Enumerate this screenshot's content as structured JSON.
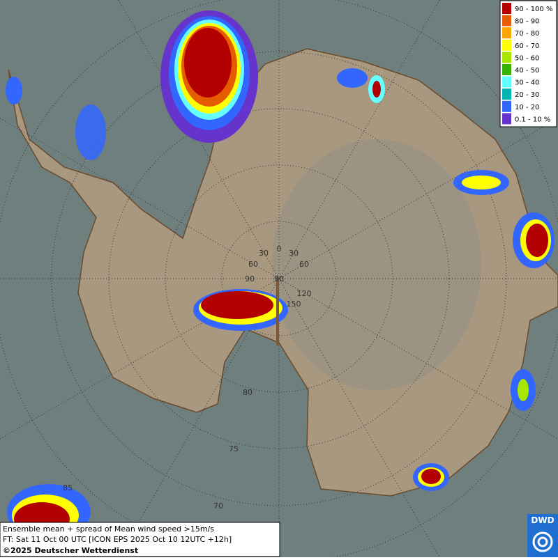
{
  "legend": {
    "items": [
      {
        "label": "90 - 100 %",
        "color": "#b30000"
      },
      {
        "label": "80 - 90",
        "color": "#e65c00"
      },
      {
        "label": "70 - 80",
        "color": "#ffa500"
      },
      {
        "label": "60 - 70",
        "color": "#ffff00"
      },
      {
        "label": "50 - 60",
        "color": "#a8e600"
      },
      {
        "label": "40 - 50",
        "color": "#33b300"
      },
      {
        "label": "30 - 40",
        "color": "#66ffff"
      },
      {
        "label": "20 - 30",
        "color": "#00b3b3"
      },
      {
        "label": "10 - 20",
        "color": "#3366ff"
      },
      {
        "label": "0.1 - 10 %",
        "color": "#6633cc"
      }
    ]
  },
  "graticule": {
    "labels": [
      "0",
      "30",
      "30",
      "60",
      "60",
      "90",
      "90",
      "120",
      "150",
      "80",
      "75",
      "70",
      "85"
    ]
  },
  "footer": {
    "line1": "Ensemble mean + spread of Mean wind speed >15m/s",
    "line2": "FT: Sat 11 Oct 00 UTC [ICON EPS 2025 Oct 10 12UTC +12h]",
    "line3": "©2025 Deutscher Wetterdienst"
  },
  "logo": {
    "text": "DWD"
  }
}
